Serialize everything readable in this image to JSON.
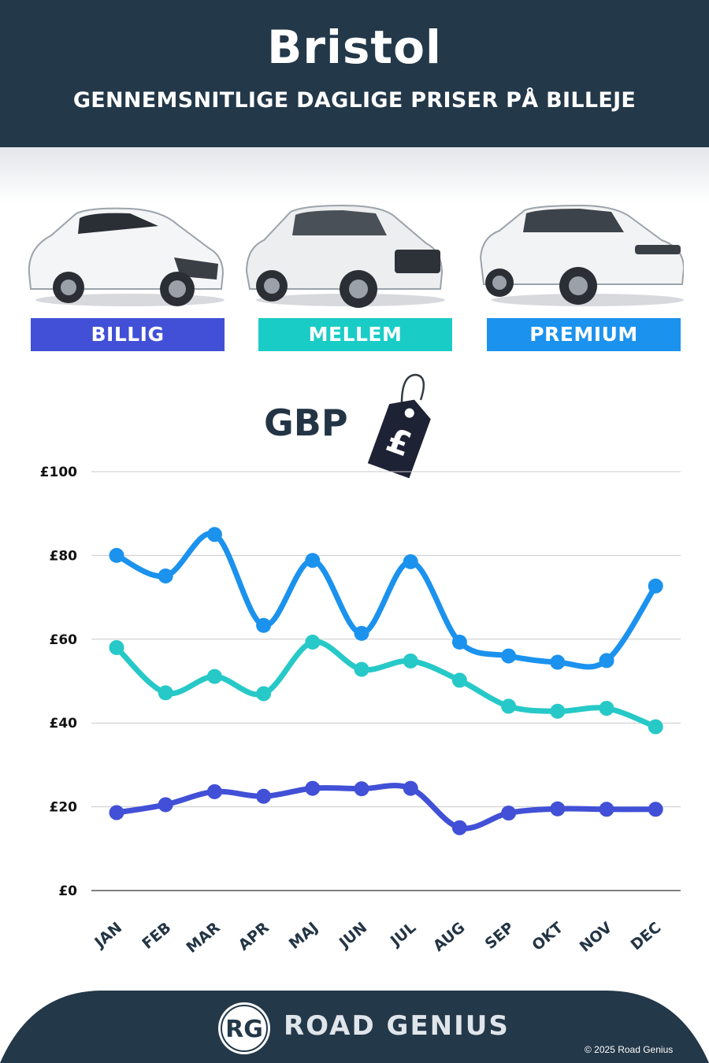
{
  "header": {
    "city": "Bristol",
    "subtitle": "GENNEMSNITLIGE DAGLIGE PRISER PÅ BILLEJE"
  },
  "categories": [
    {
      "label": "BILLIG",
      "color": "#4150d6"
    },
    {
      "label": "MELLEM",
      "color": "#19cdc6"
    },
    {
      "label": "PREMIUM",
      "color": "#1b92ee"
    }
  ],
  "currency": {
    "label": "GBP",
    "tag_symbol": "£"
  },
  "chart_data": {
    "type": "line",
    "categories": [
      "JAN",
      "FEB",
      "MAR",
      "APR",
      "MAJ",
      "JUN",
      "JUL",
      "AUG",
      "SEP",
      "OKT",
      "NOV",
      "DEC"
    ],
    "y_ticks": [
      "£0",
      "£20",
      "£40",
      "£60",
      "£80",
      "£100"
    ],
    "ylim": [
      0,
      100
    ],
    "grid": true,
    "series": [
      {
        "name": "BILLIG",
        "color": "#4150d6",
        "values": [
          18.6,
          20.5,
          23.6,
          22.5,
          24.4,
          24.3,
          24.4,
          15.0,
          18.5,
          19.5,
          19.4,
          19.4
        ]
      },
      {
        "name": "MELLEM",
        "color": "#26c9c7",
        "values": [
          58.0,
          47.2,
          51.1,
          47.0,
          59.3,
          52.8,
          54.8,
          50.2,
          44.0,
          42.8,
          43.5,
          39.1
        ]
      },
      {
        "name": "PREMIUM",
        "color": "#1b92ee",
        "values": [
          80.0,
          75.1,
          85.0,
          63.3,
          78.8,
          61.4,
          78.5,
          59.3,
          56.0,
          54.5,
          54.9,
          72.7
        ]
      }
    ]
  },
  "footer": {
    "logo_text": "RG",
    "brand": "ROAD GENIUS",
    "copyright": "© 2025 Road Genius"
  }
}
